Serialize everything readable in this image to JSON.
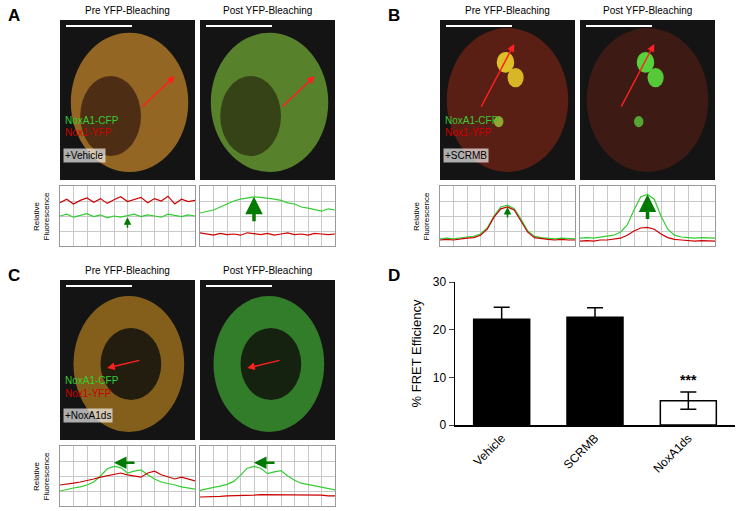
{
  "chart_data": [
    {
      "type": "line",
      "title": "A",
      "annotations": [
        "+Vehicle"
      ],
      "y_label": "Relative Fluorescence",
      "tick_labels": false,
      "grid": true,
      "xlim": [
        0,
        20
      ],
      "xticks": [
        0,
        2,
        4,
        6,
        8,
        10,
        12,
        14,
        16,
        18,
        20
      ],
      "ylim": [
        0,
        10
      ],
      "yticks": [
        0,
        2.5,
        5,
        7.5,
        10
      ],
      "profiles": [
        {
          "title": "Pre YFP-Bleaching",
          "series": [
            {
              "name": "NoxA1-CFP",
              "color": "#33cc33",
              "values": [
                5.0,
                5.3,
                4.8,
                5.1,
                5.4,
                4.9,
                5.2,
                4.7,
                5.0,
                4.8,
                5.1,
                5.3,
                4.9,
                5.2,
                5.0,
                4.8,
                5.3,
                5.1,
                4.9,
                5.2,
                5.0
              ]
            },
            {
              "name": "Nox1-YFP",
              "color": "#cc0000",
              "values": [
                7.2,
                7.8,
                7.0,
                7.6,
                8.0,
                7.3,
                7.9,
                7.1,
                7.7,
                8.2,
                7.4,
                7.8,
                8.1,
                7.2,
                7.9,
                7.5,
                8.3,
                7.0,
                7.8,
                7.4,
                7.6
              ]
            }
          ]
        },
        {
          "title": "Post YFP-Bleaching",
          "series": [
            {
              "name": "NoxA1-CFP",
              "color": "#33cc33",
              "values": [
                5.5,
                5.8,
                6.0,
                6.5,
                7.0,
                7.5,
                7.8,
                8.0,
                8.2,
                8.1,
                8.0,
                7.8,
                7.6,
                7.2,
                7.0,
                6.5,
                6.3,
                6.0,
                5.8,
                6.2,
                6.0
              ]
            },
            {
              "name": "Nox1-YFP",
              "color": "#cc0000",
              "values": [
                2.2,
                2.0,
                1.8,
                2.1,
                1.9,
                2.0,
                1.8,
                2.2,
                2.0,
                1.9,
                2.1,
                1.8,
                2.0,
                2.2,
                1.9,
                2.0,
                1.8,
                2.1,
                2.0,
                1.9,
                2.0
              ]
            }
          ]
        }
      ]
    },
    {
      "type": "line",
      "title": "B",
      "annotations": [
        "+SCRMB"
      ],
      "y_label": "Relative Fluorescence",
      "tick_labels": false,
      "grid": true,
      "xlim": [
        0,
        20
      ],
      "xticks": [
        0,
        2,
        4,
        6,
        8,
        10,
        12,
        14,
        16,
        18,
        20
      ],
      "ylim": [
        0,
        10
      ],
      "yticks": [
        0,
        2.5,
        5,
        7.5,
        10
      ],
      "profiles": [
        {
          "title": "Pre YFP-Bleaching",
          "series": [
            {
              "name": "NoxA1-CFP",
              "color": "#33cc33",
              "values": [
                1.2,
                1.3,
                1.2,
                1.4,
                1.5,
                1.6,
                2.0,
                3.0,
                5.0,
                6.5,
                6.8,
                6.2,
                4.5,
                2.5,
                1.6,
                1.4,
                1.3,
                1.2,
                1.3,
                1.2,
                1.2
              ]
            },
            {
              "name": "Nox1-YFP",
              "color": "#cc0000",
              "values": [
                1.0,
                1.1,
                1.0,
                1.2,
                1.3,
                1.4,
                1.8,
                2.8,
                4.8,
                6.2,
                6.5,
                6.0,
                4.2,
                2.3,
                1.4,
                1.2,
                1.1,
                1.0,
                1.1,
                1.0,
                1.0
              ]
            }
          ]
        },
        {
          "title": "Post YFP-Bleaching",
          "series": [
            {
              "name": "NoxA1-CFP",
              "color": "#33cc33",
              "values": [
                1.3,
                1.4,
                1.3,
                1.5,
                1.6,
                1.8,
                2.3,
                3.5,
                6.0,
                8.2,
                8.6,
                7.8,
                5.0,
                2.8,
                1.8,
                1.5,
                1.4,
                1.3,
                1.4,
                1.3,
                1.3
              ]
            },
            {
              "name": "Nox1-YFP",
              "color": "#cc0000",
              "values": [
                0.8,
                0.9,
                0.8,
                1.0,
                1.0,
                1.1,
                1.3,
                1.8,
                2.5,
                3.0,
                3.1,
                2.8,
                2.0,
                1.4,
                1.1,
                1.0,
                0.9,
                0.8,
                0.9,
                0.8,
                0.8
              ]
            }
          ]
        }
      ]
    },
    {
      "type": "line",
      "title": "C",
      "annotations": [
        "+NoxA1ds"
      ],
      "y_label": "Relative Fluorescence",
      "tick_labels": false,
      "grid": true,
      "xlim": [
        0,
        20
      ],
      "xticks": [
        0,
        2,
        4,
        6,
        8,
        10,
        12,
        14,
        16,
        18,
        20
      ],
      "ylim": [
        0,
        10
      ],
      "yticks": [
        0,
        2.5,
        5,
        7.5,
        10
      ],
      "profiles": [
        {
          "title": "Pre YFP-Bleaching",
          "series": [
            {
              "name": "NoxA1-CFP",
              "color": "#33cc33",
              "values": [
                2.5,
                2.8,
                3.0,
                3.2,
                3.5,
                4.0,
                5.0,
                6.2,
                6.6,
                6.4,
                5.5,
                5.8,
                6.0,
                5.2,
                4.5,
                4.0,
                3.8,
                3.5,
                3.2,
                3.0,
                2.8
              ]
            },
            {
              "name": "Nox1-YFP",
              "color": "#cc0000",
              "values": [
                3.5,
                3.6,
                3.8,
                4.0,
                4.2,
                4.5,
                4.8,
                5.0,
                5.2,
                5.5,
                5.2,
                5.0,
                4.8,
                5.5,
                5.8,
                5.2,
                4.8,
                4.5,
                4.8,
                4.5,
                4.2
              ]
            }
          ]
        },
        {
          "title": "Post YFP-Bleaching",
          "series": [
            {
              "name": "NoxA1-CFP",
              "color": "#33cc33",
              "values": [
                2.6,
                2.9,
                3.1,
                3.3,
                3.6,
                4.1,
                5.1,
                6.3,
                6.6,
                6.3,
                5.4,
                5.7,
                5.9,
                5.0,
                4.3,
                3.8,
                3.6,
                3.4,
                3.1,
                2.9,
                2.7
              ]
            },
            {
              "name": "Nox1-YFP",
              "color": "#cc0000",
              "values": [
                1.5,
                1.5,
                1.6,
                1.6,
                1.7,
                1.7,
                1.8,
                1.8,
                1.8,
                1.9,
                1.9,
                1.9,
                1.9,
                1.9,
                1.9,
                1.9,
                1.8,
                1.8,
                1.8,
                1.7,
                1.7
              ]
            }
          ]
        }
      ]
    },
    {
      "type": "bar",
      "title": "D",
      "categories": [
        "Vehicle",
        "SCRMB",
        "NoxA1ds"
      ],
      "values": [
        22.2,
        22.6,
        5.1
      ],
      "errors": [
        2.5,
        2.0,
        1.8
      ],
      "colors": [
        "#000000",
        "#000000",
        "#ffffff"
      ],
      "y_label": "% FRET Efficiency",
      "ylim": [
        0,
        30
      ],
      "yticks": [
        0,
        10,
        20,
        30
      ],
      "annotations": [
        {
          "category": "NoxA1ds",
          "text": "***"
        }
      ]
    }
  ]
}
